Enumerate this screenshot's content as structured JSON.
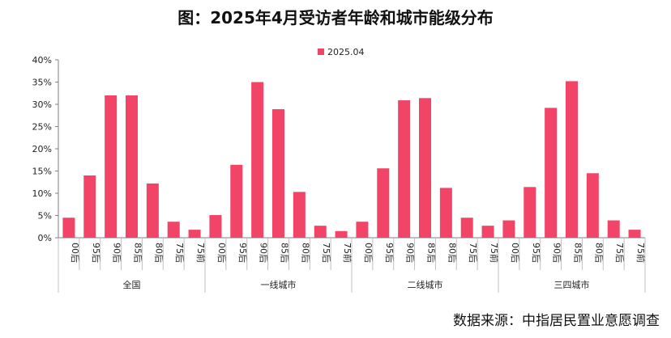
{
  "title": "图：2025年4月受访者年龄和城市能级分布",
  "source": "数据来源：中指居民置业意愿调查",
  "chart_data": {
    "type": "bar",
    "legend": "2025.04",
    "legend_position": "top-center",
    "bar_color": "#f24467",
    "groups": [
      {
        "name": "全国",
        "categories": [
          "00后",
          "95后",
          "90后",
          "85后",
          "80后",
          "75后",
          "75前"
        ],
        "values": [
          4.5,
          14.0,
          32.0,
          32.0,
          12.2,
          3.6,
          1.8
        ]
      },
      {
        "name": "一线城市",
        "categories": [
          "00后",
          "95后",
          "90后",
          "85后",
          "80后",
          "75后",
          "75前"
        ],
        "values": [
          5.1,
          16.4,
          35.0,
          28.9,
          10.3,
          2.7,
          1.5
        ]
      },
      {
        "name": "二线城市",
        "categories": [
          "00后",
          "95后",
          "90后",
          "85后",
          "80后",
          "75后",
          "75前"
        ],
        "values": [
          3.6,
          15.6,
          30.9,
          31.4,
          11.2,
          4.5,
          2.7
        ]
      },
      {
        "name": "三四城市",
        "categories": [
          "00后",
          "95后",
          "90后",
          "85后",
          "80后",
          "75后",
          "75前"
        ],
        "values": [
          3.9,
          11.4,
          29.2,
          35.2,
          14.5,
          3.9,
          1.8
        ]
      }
    ],
    "ylim": [
      0,
      40
    ],
    "yticks": [
      "0%",
      "5%",
      "10%",
      "15%",
      "20%",
      "25%",
      "30%",
      "35%",
      "40%"
    ],
    "ytick_values": [
      0,
      5,
      10,
      15,
      20,
      25,
      30,
      35,
      40
    ],
    "grid": false
  }
}
